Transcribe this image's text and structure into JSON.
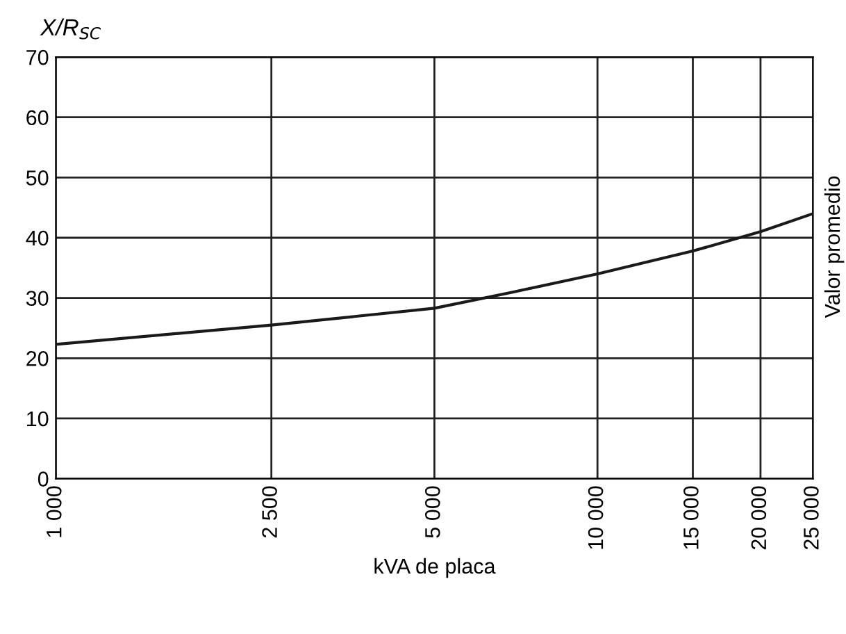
{
  "chart_data": {
    "type": "line",
    "xlabel": "kVA de placa",
    "ylabel": "X/R$_{SC}$",
    "log": "x",
    "x": [
      1000,
      2500,
      5000,
      7000,
      10000,
      15000,
      20000,
      25000
    ],
    "series": [
      {
        "color": "#1a1a1a",
        "values": [
          22.3,
          25.5,
          28.3,
          31,
          34,
          37.8,
          41,
          44
        ]
      }
    ],
    "xlim": [
      1000,
      25000
    ],
    "xticks": [
      {
        "value": 1000,
        "label": "1 000"
      },
      {
        "value": 2500,
        "label": "2 500"
      },
      {
        "value": 5000,
        "label": "5 000"
      },
      {
        "value": 10000,
        "label": "10 000"
      },
      {
        "value": 15000,
        "label": "15 000"
      },
      {
        "value": 20000,
        "label": "20 000"
      },
      {
        "value": 25000,
        "label": "25 000"
      }
    ],
    "ylim": [
      0,
      70
    ],
    "yticks": [
      0,
      10,
      20,
      30,
      40,
      50,
      60,
      70
    ],
    "grid": true,
    "annotations": [
      "Valor promedio"
    ]
  }
}
